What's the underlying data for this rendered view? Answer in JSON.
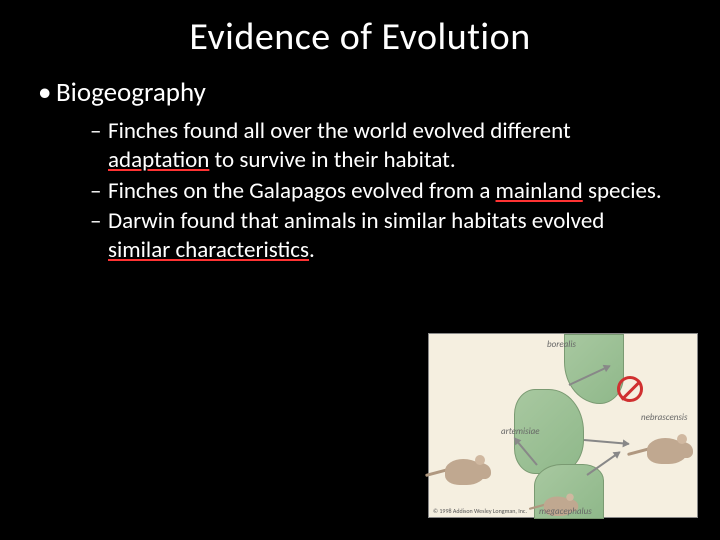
{
  "title": "Evidence of Evolution",
  "bullet1": "Biogeography",
  "sub1_a": "Finches found all over the world evolved different ",
  "sub1_b": "adaptation",
  "sub1_c": " to survive in their habitat.",
  "sub2_a": "Finches on the Galapagos evolved from a ",
  "sub2_b": "mainland",
  "sub2_c": " species.",
  "sub3_a": "Darwin found that animals in similar habitats evolved ",
  "sub3_b": "similar characteristics",
  "sub3_c": ".",
  "figure": {
    "label_top": "borealis",
    "label_mid": "artemisiae",
    "label_right": "nebrascensis",
    "label_bottom": "megacephalus",
    "copyright": "© 1998 Addison Wesley Longman, Inc."
  },
  "colors": {
    "background": "#000000",
    "text": "#ffffff",
    "underline": "#ff3333",
    "figure_bg": "#f5efe0",
    "land": "#a8c8a0",
    "mouse": "#c0a890",
    "no_symbol": "#d03030",
    "arrow": "#888888"
  }
}
